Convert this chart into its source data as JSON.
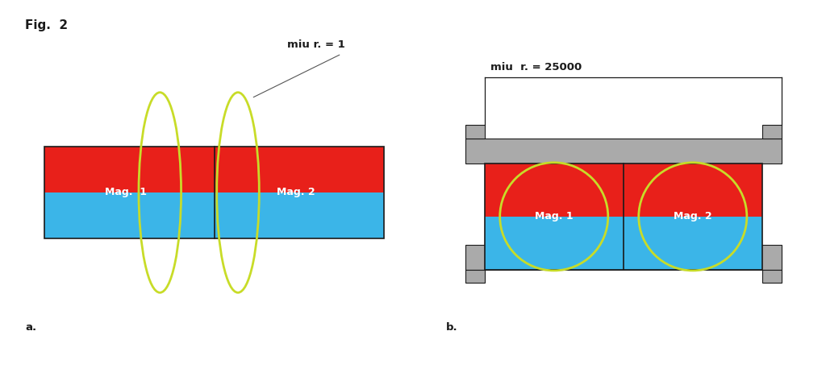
{
  "fig_label": "Fig.  2",
  "panel_a_label": "a.",
  "panel_b_label": "b.",
  "mag1_label_a": "Mag.  1",
  "mag2_label_a": "Mag. 2",
  "mag1_label_b": "Mag. 1",
  "mag2_label_b": "Mag. 2",
  "miu_r_1_label": "miu r. = 1",
  "miu_r_25000_label": "miu  r. = 25000",
  "red_color": "#E8201A",
  "blue_color": "#3BB5E8",
  "gray_color": "#AAAAAA",
  "gray_light_color": "#BBBBBB",
  "yellow_green_color": "#C8DC28",
  "white_color": "#FFFFFF",
  "black_color": "#1A1A1A",
  "bg_color": "#FFFFFF",
  "label_fontsize": 9.5,
  "mag_fontsize": 9,
  "fig_label_fontsize": 11
}
